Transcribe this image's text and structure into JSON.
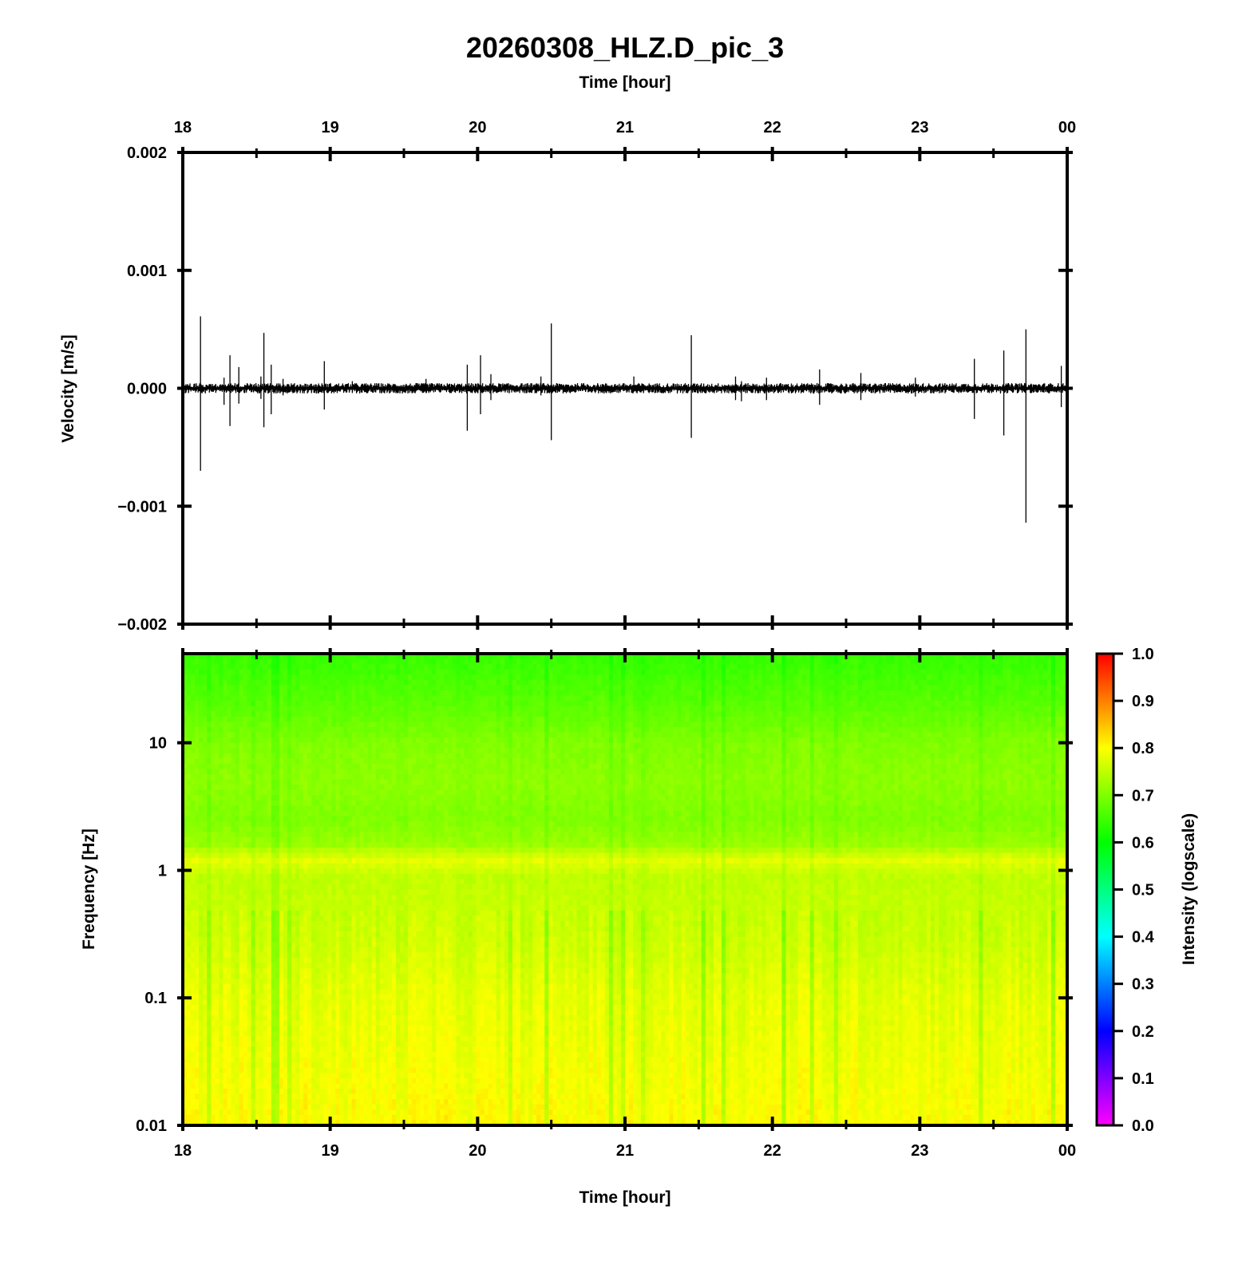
{
  "title": "20260308_HLZ.D_pic_3",
  "top_axis_label": "Time [hour]",
  "chart_data": [
    {
      "type": "line",
      "name": "waveform",
      "ylabel": "Velocity [m/s]",
      "x_ticks": [
        "18",
        "19",
        "20",
        "21",
        "22",
        "23",
        "00"
      ],
      "x_range_hours": [
        18,
        24
      ],
      "ylim": [
        -0.002,
        0.002
      ],
      "y_ticks": [
        {
          "value": 0.002,
          "label": "0.002"
        },
        {
          "value": 0.001,
          "label": "0.001"
        },
        {
          "value": 0.0,
          "label": "0.000"
        },
        {
          "value": -0.001,
          "label": "−0.001"
        },
        {
          "value": -0.002,
          "label": "−0.002"
        }
      ],
      "noise_amplitude": 4e-05,
      "spikes": [
        {
          "t": 18.12,
          "max": 0.00061,
          "min": -0.0007
        },
        {
          "t": 18.28,
          "max": 9e-05,
          "min": -0.00014
        },
        {
          "t": 18.32,
          "max": 0.00028,
          "min": -0.00032
        },
        {
          "t": 18.38,
          "max": 0.00018,
          "min": -0.00013
        },
        {
          "t": 18.53,
          "max": 0.0001,
          "min": -9e-05
        },
        {
          "t": 18.55,
          "max": 0.00047,
          "min": -0.00033
        },
        {
          "t": 18.6,
          "max": 0.0002,
          "min": -0.00022
        },
        {
          "t": 18.68,
          "max": 8e-05,
          "min": -6e-05
        },
        {
          "t": 18.96,
          "max": 0.00023,
          "min": -0.00018
        },
        {
          "t": 19.15,
          "max": 6e-05,
          "min": -4e-05
        },
        {
          "t": 19.65,
          "max": 8e-05,
          "min": -4e-05
        },
        {
          "t": 19.93,
          "max": 0.0002,
          "min": -0.00036
        },
        {
          "t": 20.02,
          "max": 0.00028,
          "min": -0.00022
        },
        {
          "t": 20.09,
          "max": 0.00012,
          "min": -0.0001
        },
        {
          "t": 20.43,
          "max": 0.0001,
          "min": -6e-05
        },
        {
          "t": 20.5,
          "max": 0.00055,
          "min": -0.00044
        },
        {
          "t": 21.06,
          "max": 0.0001,
          "min": -3e-05
        },
        {
          "t": 21.45,
          "max": 0.00045,
          "min": -0.00042
        },
        {
          "t": 21.75,
          "max": 0.0001,
          "min": -0.0001
        },
        {
          "t": 21.79,
          "max": 6e-05,
          "min": -0.00011
        },
        {
          "t": 21.96,
          "max": 9e-05,
          "min": -0.0001
        },
        {
          "t": 22.32,
          "max": 0.00016,
          "min": -0.00014
        },
        {
          "t": 22.6,
          "max": 0.00013,
          "min": -0.0001
        },
        {
          "t": 22.97,
          "max": 9e-05,
          "min": -7e-05
        },
        {
          "t": 23.37,
          "max": 0.00025,
          "min": -0.00026
        },
        {
          "t": 23.57,
          "max": 0.00032,
          "min": -0.0004
        },
        {
          "t": 23.72,
          "max": 0.0005,
          "min": -0.00114
        },
        {
          "t": 23.96,
          "max": 0.00019,
          "min": -0.00016
        }
      ]
    },
    {
      "type": "heatmap",
      "name": "spectrogram",
      "xlabel": "Time [hour]",
      "ylabel": "Frequency [Hz]",
      "x_ticks": [
        "18",
        "19",
        "20",
        "21",
        "22",
        "23",
        "00"
      ],
      "x_range_hours": [
        18,
        24
      ],
      "ylim_hz": [
        0.01,
        50
      ],
      "y_scale": "log",
      "y_ticks": [
        {
          "value": 10,
          "label": "10"
        },
        {
          "value": 1,
          "label": "1"
        },
        {
          "value": 0.1,
          "label": "0.1"
        },
        {
          "value": 0.01,
          "label": "0.01"
        }
      ],
      "intensity_profile": [
        {
          "f": 50,
          "v": 0.64
        },
        {
          "f": 20,
          "v": 0.67
        },
        {
          "f": 10,
          "v": 0.7
        },
        {
          "f": 5,
          "v": 0.71
        },
        {
          "f": 2.5,
          "v": 0.7
        },
        {
          "f": 1.6,
          "v": 0.72
        },
        {
          "f": 1.2,
          "v": 0.78
        },
        {
          "f": 0.9,
          "v": 0.75
        },
        {
          "f": 0.3,
          "v": 0.76
        },
        {
          "f": 0.1,
          "v": 0.78
        },
        {
          "f": 0.03,
          "v": 0.79
        },
        {
          "f": 0.01,
          "v": 0.8
        }
      ],
      "colorbar": {
        "label": "Intensity (logscale)",
        "range": [
          0,
          1
        ],
        "ticks": [
          "0.0",
          "0.1",
          "0.2",
          "0.3",
          "0.4",
          "0.5",
          "0.6",
          "0.7",
          "0.8",
          "0.9",
          "1.0"
        ],
        "colors": [
          "#ff00ff",
          "#0000ff",
          "#00ffff",
          "#00ff00",
          "#ffff00",
          "#ff0000"
        ]
      }
    }
  ]
}
